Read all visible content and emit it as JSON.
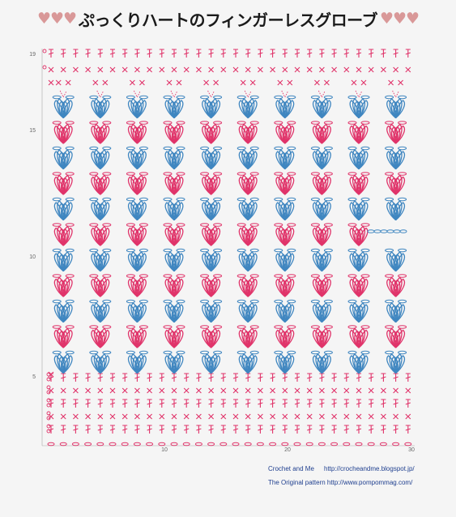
{
  "title": {
    "text": "ぷっくりハートのフィンガーレスグローブ",
    "hearts_left": "♥♥♥",
    "hearts_right": "♥♥♥"
  },
  "row_labels": [
    "19",
    "15",
    "10",
    "5"
  ],
  "stitch_labels": [
    "10",
    "20",
    "30"
  ],
  "credits": {
    "site_name": "Crochet and Me",
    "site_url": "http://crocheandme.blogspot.jp/",
    "original": "The Original pattern http://www.pompommag.com/"
  },
  "colors": {
    "pink": "#e0346a",
    "blue": "#3f86c0",
    "axis": "#999999",
    "text": "#1f3f8f",
    "background": "#f5f5f5"
  },
  "pattern": {
    "stitch_count": 30,
    "row_count": 19,
    "heart_columns": 10,
    "ribbing_rows": 5,
    "heart_bands": 11,
    "thumb_chain_band": 5
  }
}
